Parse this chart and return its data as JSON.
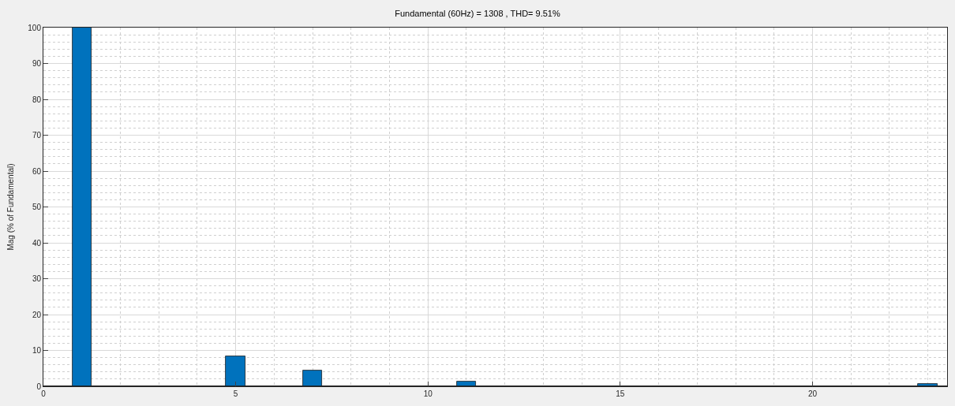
{
  "chart_data": {
    "type": "bar",
    "title": "Fundamental (60Hz) = 1308 , THD= 9.51%",
    "ylabel": "Mag (% of Fundamental)",
    "x": [
      1,
      5,
      7,
      11,
      23
    ],
    "values": [
      100,
      8.4,
      4.3,
      1.3,
      0.6
    ],
    "color": "#0072bd",
    "xlim": [
      0,
      23.5
    ],
    "xticks": [
      0,
      5,
      10,
      15,
      20
    ],
    "ylim": [
      0,
      100
    ],
    "yticks": [
      0,
      10,
      20,
      30,
      40,
      50,
      60,
      70,
      80,
      90,
      100
    ],
    "grid": true
  }
}
